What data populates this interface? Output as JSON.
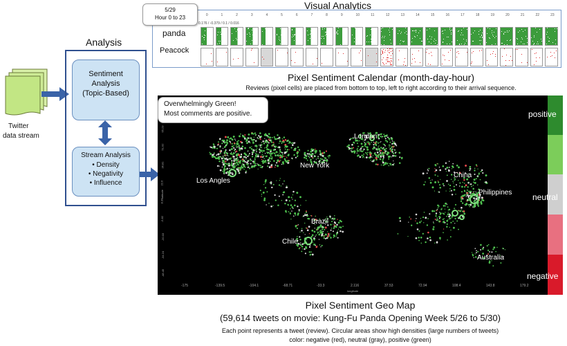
{
  "visual_analytics": {
    "title": "Visual Analytics",
    "tooltip": {
      "date": "5/29",
      "hours": "Hour 0 to 23"
    },
    "hour_ticks": [
      "0",
      "1",
      "2",
      "3",
      "4",
      "5",
      "6",
      "7",
      "8",
      "9",
      "10",
      "11",
      "12",
      "13",
      "14",
      "15",
      "16",
      "17",
      "18",
      "19",
      "20",
      "21",
      "22",
      "23"
    ],
    "stat_line": "0.176 / -0.379 / 0.1 / 0.016",
    "rows": [
      {
        "label": "panda",
        "fill": "#3c9c3c",
        "dense_color": "#1f7a1f"
      },
      {
        "label": "Peacock",
        "fill": "#ffffff",
        "dense_color": "#e02020"
      }
    ]
  },
  "calendar": {
    "title": "Pixel Sentiment Calendar (month-day-hour)",
    "subtitle": "Reviews (pixel cells) are placed from bottom to top, left to right according to their arrival sequence."
  },
  "pipeline": {
    "source_label_line1": "Twitter",
    "source_label_line2": "data stream",
    "panel_title": "Analysis",
    "sentiment_box": {
      "line1": "Sentiment",
      "line2": "Analysis",
      "line3": "(Topic-Based)"
    },
    "stream_box": {
      "title": "Stream Analysis",
      "items": [
        "• Density",
        "• Negativity",
        "• Influence"
      ]
    }
  },
  "geomap": {
    "callout_line1": "Overwhelmingly Green!",
    "callout_line2": "Most comments are positive.",
    "cities": [
      "London",
      "New York",
      "Los Angles",
      "China",
      "Philippines",
      "Brazil",
      "Chile",
      "Australia"
    ],
    "x_ticks": [
      "-175",
      "-139.5",
      "-104.1",
      "-68.71",
      "-33.3",
      "2.116",
      "37.53",
      "72.94",
      "108.4",
      "143.8",
      "179.2"
    ],
    "y_ticks": [
      "65.23",
      "51.02",
      "36.81",
      "22.6",
      "8.39",
      "-5.82",
      "-20.03",
      "-34.24",
      "-48.45"
    ],
    "x_axis_label": "longitude",
    "y_axis_label": "latitude",
    "scale": {
      "positive_label": "positive",
      "neutral_label": "neutral",
      "negative_label": "negative",
      "colors": {
        "positive_dark": "#2e8b2e",
        "positive_light": "#7ccd5a",
        "neutral": "#cfcfcf",
        "negative_light": "#e87080",
        "negative_dark": "#d91a2a"
      }
    },
    "caption_title": "Pixel Sentiment Geo Map",
    "caption_sub": "(59,614 tweets on movie: Kung-Fu Panda Opening Week 5/26 to 5/30)",
    "caption_line1": "Each point represents a tweet (review). Circular areas show high densities (large numbers of tweets)",
    "caption_line2": "color: negative (red), neutral (gray), positive (green)"
  },
  "colors": {
    "arrow": "#3a63a8",
    "panel_border": "#2f4f8f",
    "box_fill": "#cde3f4",
    "map_bg": "#000000"
  }
}
